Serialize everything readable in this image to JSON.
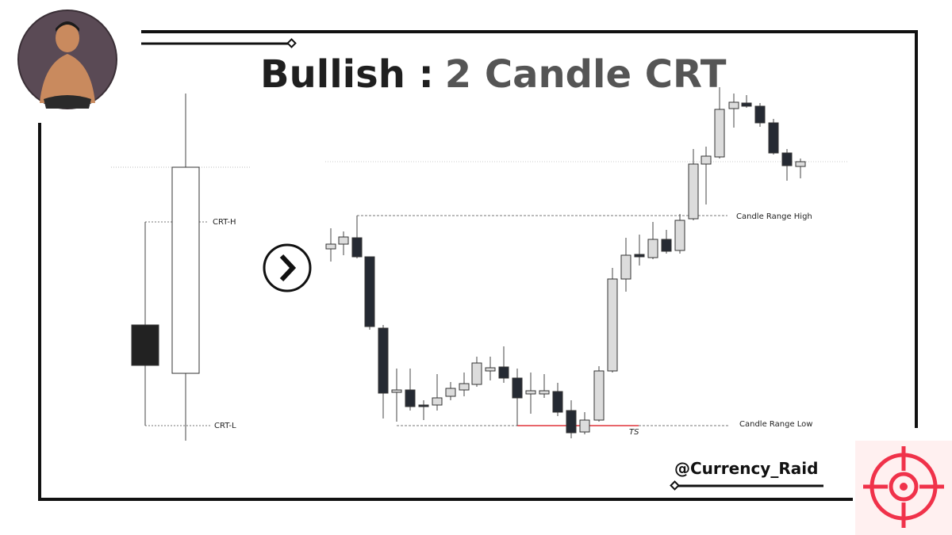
{
  "title": {
    "lead": "Bullish :",
    "rest": "2 Candle CRT"
  },
  "left_diagram": {
    "high_label": "CRT-H",
    "low_label": "CRT-L"
  },
  "right_diagram": {
    "high_label": "Candle Range High",
    "low_label": "Candle Range Low",
    "sweep_label": "TS"
  },
  "handle": "@Currency_Raid"
}
